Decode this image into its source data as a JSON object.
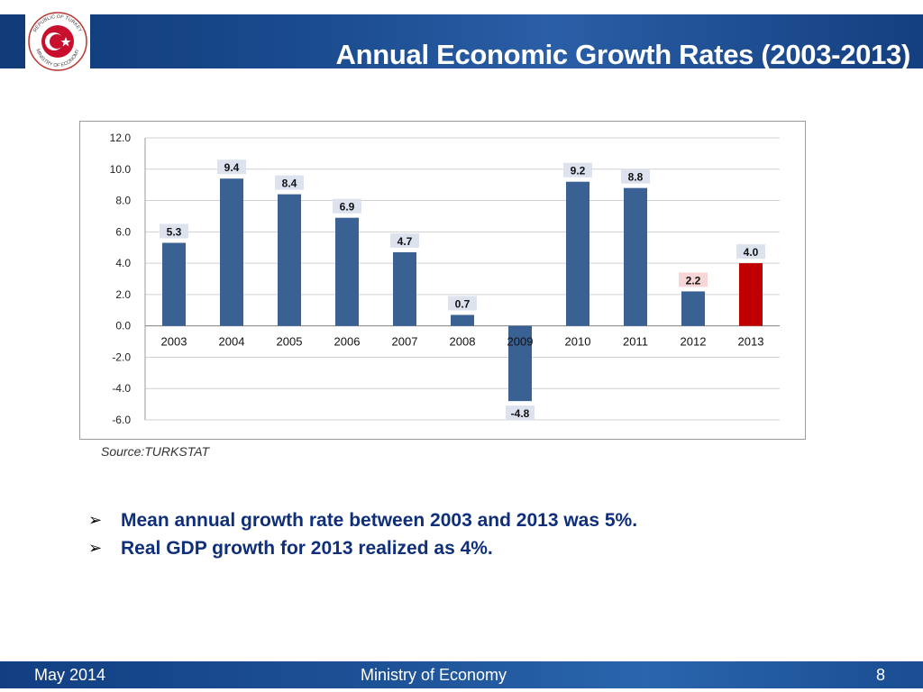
{
  "header": {
    "title": "Annual Economic Growth Rates (2003-2013)",
    "logo_text_top": "REPUBLIC OF TURKEY",
    "logo_text_bottom": "MINISTRY OF ECONOMY"
  },
  "chart_data": {
    "type": "bar",
    "categories": [
      "2003",
      "2004",
      "2005",
      "2006",
      "2007",
      "2008",
      "2009",
      "2010",
      "2011",
      "2012",
      "2013"
    ],
    "values": [
      5.3,
      9.4,
      8.4,
      6.9,
      4.7,
      0.7,
      -4.8,
      9.2,
      8.8,
      2.2,
      4.0
    ],
    "data_labels": [
      "5.3",
      "9.4",
      "8.4",
      "6.9",
      "4.7",
      "0.7",
      "-4.8",
      "9.2",
      "8.8",
      "2.2",
      "4.0"
    ],
    "highlight_index": 10,
    "y_ticks": [
      "12.0",
      "10.0",
      "8.0",
      "6.0",
      "4.0",
      "2.0",
      "0.0",
      "-2.0",
      "-4.0",
      "-6.0"
    ],
    "ylim": [
      -6,
      12
    ],
    "grid": true,
    "colors": {
      "bar": "#3a6193",
      "highlight": "#c00000",
      "label_bg": "#dce3ef",
      "highlight_label_bg": "#f6d6d6",
      "grid": "#d0d0d0"
    }
  },
  "source": "Source:TURKSTAT",
  "bullets": [
    "Mean annual growth rate between 2003 and 2013 was 5%.",
    "Real GDP growth  for 2013 realized as 4%."
  ],
  "footer": {
    "date": "May 2014",
    "org": "Ministry of Economy",
    "page": "8"
  }
}
